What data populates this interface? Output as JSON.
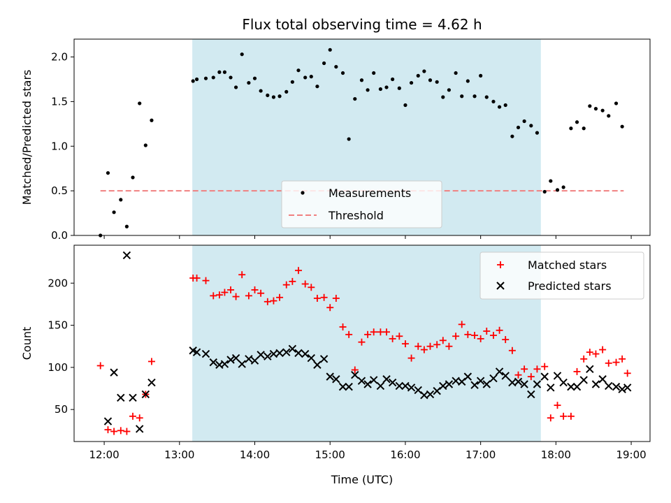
{
  "chart_data": [
    {
      "type": "scatter",
      "title": "Flux total observing time = 4.62 h",
      "xlabel": "",
      "ylabel": "Matched/Predicted stars",
      "xlim": [
        11.6,
        19.25
      ],
      "ylim": [
        0.0,
        2.2
      ],
      "yticks": [
        0.0,
        0.5,
        1.0,
        1.5,
        2.0
      ],
      "ytick_labels": [
        "0.0",
        "0.5",
        "1.0",
        "1.5",
        "2.0"
      ],
      "shaded_span": [
        13.17,
        17.8
      ],
      "shaded_color": "#add8e6",
      "grid": false,
      "legend": {
        "placement": "lower-center",
        "entries": [
          {
            "label": "Measurements",
            "marker": "dot",
            "color": "#000000"
          },
          {
            "label": "Threshold",
            "marker": "dashed-line",
            "color": "#f08080"
          }
        ]
      },
      "threshold": {
        "value": 0.5,
        "x_range": [
          11.95,
          18.9
        ],
        "color": "#f08080"
      },
      "series": [
        {
          "name": "Measurements",
          "color": "#000000",
          "points": [
            [
              11.95,
              0.0
            ],
            [
              12.05,
              0.7
            ],
            [
              12.13,
              0.26
            ],
            [
              12.22,
              0.4
            ],
            [
              12.3,
              0.1
            ],
            [
              12.38,
              0.65
            ],
            [
              12.47,
              1.48
            ],
            [
              12.55,
              1.01
            ],
            [
              12.63,
              1.29
            ],
            [
              13.18,
              1.73
            ],
            [
              13.23,
              1.75
            ],
            [
              13.35,
              1.76
            ],
            [
              13.45,
              1.77
            ],
            [
              13.53,
              1.83
            ],
            [
              13.6,
              1.83
            ],
            [
              13.68,
              1.77
            ],
            [
              13.75,
              1.66
            ],
            [
              13.83,
              2.03
            ],
            [
              13.92,
              1.71
            ],
            [
              14.0,
              1.76
            ],
            [
              14.08,
              1.62
            ],
            [
              14.17,
              1.57
            ],
            [
              14.25,
              1.55
            ],
            [
              14.33,
              1.56
            ],
            [
              14.42,
              1.61
            ],
            [
              14.5,
              1.72
            ],
            [
              14.58,
              1.85
            ],
            [
              14.67,
              1.77
            ],
            [
              14.75,
              1.78
            ],
            [
              14.83,
              1.67
            ],
            [
              14.92,
              1.93
            ],
            [
              15.0,
              2.08
            ],
            [
              15.08,
              1.89
            ],
            [
              15.17,
              1.82
            ],
            [
              15.25,
              1.08
            ],
            [
              15.33,
              1.53
            ],
            [
              15.42,
              1.74
            ],
            [
              15.5,
              1.63
            ],
            [
              15.58,
              1.82
            ],
            [
              15.67,
              1.64
            ],
            [
              15.75,
              1.66
            ],
            [
              15.83,
              1.75
            ],
            [
              15.92,
              1.65
            ],
            [
              16.0,
              1.46
            ],
            [
              16.08,
              1.71
            ],
            [
              16.17,
              1.79
            ],
            [
              16.25,
              1.84
            ],
            [
              16.33,
              1.74
            ],
            [
              16.42,
              1.72
            ],
            [
              16.5,
              1.55
            ],
            [
              16.58,
              1.63
            ],
            [
              16.67,
              1.82
            ],
            [
              16.75,
              1.56
            ],
            [
              16.83,
              1.73
            ],
            [
              16.92,
              1.56
            ],
            [
              17.0,
              1.79
            ],
            [
              17.08,
              1.55
            ],
            [
              17.17,
              1.5
            ],
            [
              17.25,
              1.44
            ],
            [
              17.33,
              1.46
            ],
            [
              17.42,
              1.11
            ],
            [
              17.5,
              1.21
            ],
            [
              17.58,
              1.28
            ],
            [
              17.67,
              1.23
            ],
            [
              17.75,
              1.15
            ],
            [
              17.85,
              0.49
            ],
            [
              17.93,
              0.61
            ],
            [
              18.02,
              0.51
            ],
            [
              18.1,
              0.54
            ],
            [
              18.2,
              1.2
            ],
            [
              18.28,
              1.27
            ],
            [
              18.37,
              1.2
            ],
            [
              18.45,
              1.45
            ],
            [
              18.53,
              1.42
            ],
            [
              18.62,
              1.4
            ],
            [
              18.7,
              1.34
            ],
            [
              18.8,
              1.48
            ],
            [
              18.88,
              1.22
            ]
          ]
        }
      ]
    },
    {
      "type": "scatter",
      "title": "",
      "xlabel": "Time (UTC)",
      "ylabel": "Count",
      "xlim": [
        11.6,
        19.25
      ],
      "ylim": [
        12,
        245
      ],
      "yticks": [
        50,
        100,
        150,
        200
      ],
      "ytick_labels": [
        "50",
        "100",
        "150",
        "200"
      ],
      "xticks": [
        12,
        13,
        14,
        15,
        16,
        17,
        18,
        19
      ],
      "xtick_labels": [
        "12:00",
        "13:00",
        "14:00",
        "15:00",
        "16:00",
        "17:00",
        "18:00",
        "19:00"
      ],
      "shaded_span": [
        13.17,
        17.8
      ],
      "shaded_color": "#add8e6",
      "grid": false,
      "legend": {
        "placement": "top-right",
        "entries": [
          {
            "label": "Matched stars",
            "marker": "plus",
            "color": "#ff0000"
          },
          {
            "label": "Predicted stars",
            "marker": "x",
            "color": "#000000"
          }
        ]
      },
      "series": [
        {
          "name": "Matched stars",
          "marker": "plus",
          "color": "#ff0000",
          "points": [
            [
              11.95,
              102
            ],
            [
              12.05,
              26
            ],
            [
              12.13,
              24
            ],
            [
              12.22,
              25
            ],
            [
              12.3,
              24
            ],
            [
              12.38,
              42
            ],
            [
              12.47,
              40
            ],
            [
              12.55,
              68
            ],
            [
              12.63,
              107
            ],
            [
              13.18,
              206
            ],
            [
              13.23,
              206
            ],
            [
              13.35,
              203
            ],
            [
              13.45,
              185
            ],
            [
              13.53,
              186
            ],
            [
              13.6,
              189
            ],
            [
              13.68,
              192
            ],
            [
              13.75,
              184
            ],
            [
              13.83,
              210
            ],
            [
              13.92,
              185
            ],
            [
              14.0,
              192
            ],
            [
              14.08,
              188
            ],
            [
              14.17,
              178
            ],
            [
              14.25,
              179
            ],
            [
              14.33,
              183
            ],
            [
              14.42,
              198
            ],
            [
              14.5,
              202
            ],
            [
              14.58,
              215
            ],
            [
              14.67,
              199
            ],
            [
              14.75,
              195
            ],
            [
              14.83,
              182
            ],
            [
              14.92,
              183
            ],
            [
              15.0,
              171
            ],
            [
              15.08,
              182
            ],
            [
              15.17,
              148
            ],
            [
              15.25,
              139
            ],
            [
              15.33,
              97
            ],
            [
              15.42,
              130
            ],
            [
              15.5,
              139
            ],
            [
              15.58,
              142
            ],
            [
              15.67,
              142
            ],
            [
              15.75,
              142
            ],
            [
              15.83,
              134
            ],
            [
              15.92,
              137
            ],
            [
              16.0,
              128
            ],
            [
              16.08,
              111
            ],
            [
              16.17,
              125
            ],
            [
              16.25,
              121
            ],
            [
              16.33,
              125
            ],
            [
              16.42,
              127
            ],
            [
              16.5,
              132
            ],
            [
              16.58,
              125
            ],
            [
              16.67,
              137
            ],
            [
              16.75,
              151
            ],
            [
              16.83,
              139
            ],
            [
              16.92,
              138
            ],
            [
              17.0,
              134
            ],
            [
              17.08,
              143
            ],
            [
              17.17,
              138
            ],
            [
              17.25,
              144
            ],
            [
              17.33,
              133
            ],
            [
              17.42,
              120
            ],
            [
              17.5,
              91
            ],
            [
              17.58,
              98
            ],
            [
              17.67,
              89
            ],
            [
              17.75,
              98
            ],
            [
              17.85,
              101
            ],
            [
              17.93,
              40
            ],
            [
              18.02,
              55
            ],
            [
              18.1,
              42
            ],
            [
              18.2,
              42
            ],
            [
              18.28,
              95
            ],
            [
              18.37,
              110
            ],
            [
              18.45,
              118
            ],
            [
              18.53,
              116
            ],
            [
              18.62,
              121
            ],
            [
              18.7,
              105
            ],
            [
              18.8,
              106
            ],
            [
              18.88,
              110
            ],
            [
              18.95,
              93
            ]
          ]
        },
        {
          "name": "Predicted stars",
          "marker": "x",
          "color": "#000000",
          "points": [
            [
              12.05,
              36
            ],
            [
              12.13,
              94
            ],
            [
              12.22,
              64
            ],
            [
              12.3,
              233
            ],
            [
              12.38,
              64
            ],
            [
              12.47,
              27
            ],
            [
              12.55,
              68
            ],
            [
              12.63,
              82
            ],
            [
              13.18,
              120
            ],
            [
              13.23,
              118
            ],
            [
              13.35,
              116
            ],
            [
              13.45,
              106
            ],
            [
              13.53,
              103
            ],
            [
              13.6,
              104
            ],
            [
              13.68,
              109
            ],
            [
              13.75,
              111
            ],
            [
              13.83,
              104
            ],
            [
              13.92,
              110
            ],
            [
              14.0,
              108
            ],
            [
              14.08,
              115
            ],
            [
              14.17,
              113
            ],
            [
              14.25,
              116
            ],
            [
              14.33,
              117
            ],
            [
              14.42,
              118
            ],
            [
              14.5,
              122
            ],
            [
              14.58,
              117
            ],
            [
              14.67,
              116
            ],
            [
              14.75,
              111
            ],
            [
              14.83,
              103
            ],
            [
              14.92,
              110
            ],
            [
              15.0,
              89
            ],
            [
              15.08,
              86
            ],
            [
              15.17,
              77
            ],
            [
              15.25,
              77
            ],
            [
              15.33,
              91
            ],
            [
              15.42,
              84
            ],
            [
              15.5,
              80
            ],
            [
              15.58,
              85
            ],
            [
              15.67,
              78
            ],
            [
              15.75,
              86
            ],
            [
              15.83,
              82
            ],
            [
              15.92,
              78
            ],
            [
              16.0,
              78
            ],
            [
              16.08,
              76
            ],
            [
              16.17,
              73
            ],
            [
              16.25,
              67
            ],
            [
              16.33,
              68
            ],
            [
              16.42,
              72
            ],
            [
              16.5,
              78
            ],
            [
              16.58,
              80
            ],
            [
              16.67,
              84
            ],
            [
              16.75,
              83
            ],
            [
              16.83,
              89
            ],
            [
              16.92,
              79
            ],
            [
              17.0,
              84
            ],
            [
              17.08,
              80
            ],
            [
              17.17,
              87
            ],
            [
              17.25,
              95
            ],
            [
              17.33,
              90
            ],
            [
              17.42,
              82
            ],
            [
              17.5,
              83
            ],
            [
              17.58,
              80
            ],
            [
              17.67,
              68
            ],
            [
              17.75,
              80
            ],
            [
              17.85,
              89
            ],
            [
              17.93,
              76
            ],
            [
              18.02,
              90
            ],
            [
              18.1,
              82
            ],
            [
              18.2,
              77
            ],
            [
              18.28,
              77
            ],
            [
              18.37,
              85
            ],
            [
              18.45,
              98
            ],
            [
              18.53,
              80
            ],
            [
              18.62,
              86
            ],
            [
              18.7,
              78
            ],
            [
              18.8,
              77
            ],
            [
              18.88,
              74
            ],
            [
              18.95,
              76
            ]
          ]
        }
      ]
    }
  ]
}
